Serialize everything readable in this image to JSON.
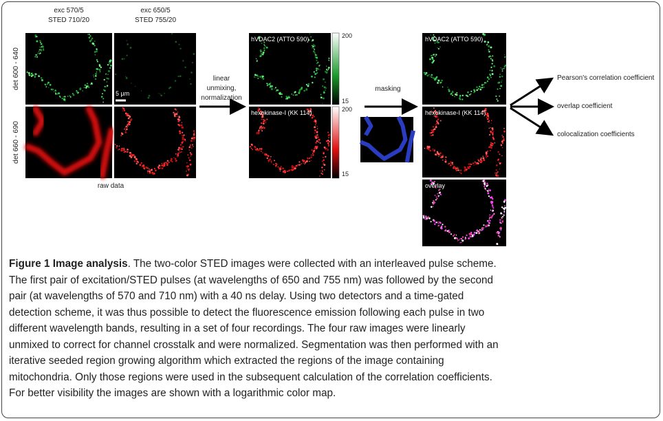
{
  "raw": {
    "columns": [
      [
        "exc 570/5",
        "STED 710/20"
      ],
      [
        "exc 650/5",
        "STED 755/20"
      ]
    ],
    "rows": [
      "det 600 - 640",
      "det 660 - 690"
    ],
    "scale_bar": "5 µm",
    "label": "raw data"
  },
  "step1": {
    "lines": [
      "linear",
      "unmixing,",
      "normalization"
    ]
  },
  "unmixed": {
    "channels": [
      {
        "name": "hVDAC2 (ATTO 590)",
        "max": 200,
        "min": 15
      },
      {
        "name": "hexokinase-I (KK 114)",
        "max": 200,
        "min": 15
      }
    ]
  },
  "step2": {
    "label": "masking"
  },
  "masked": {
    "channels": [
      "hVDAC2 (ATTO 590)",
      "hexokinase-I (KK 114)",
      "overlay"
    ]
  },
  "outputs": [
    "Pearson's correlation coefficient",
    "overlap coefficient",
    "colocalization coefficients"
  ],
  "caption": {
    "label": "Figure 1 Image analysis",
    "lines": [
      ". The two-color STED images were collected with an interleaved pulse scheme.",
      "The first pair of excitation/STED pulses (at wavelengths of 650 and 755 nm) was followed by the second",
      "pair (at wavelengths of 570 and 710 nm) with a 40 ns delay. Using two detectors and a time-gated",
      "detection scheme, it was thus possible to detect the fluorescence emission following each pulse in two",
      "different wavelength bands, resulting in a set of four recordings. The four raw images were linearly",
      "unmixed to correct for channel crosstalk and were normalized. Segmentation was then performed with an",
      "iterative seeded region growing algorithm which extracted the regions of the image containing",
      "mitochondria. Only those regions were used in the subsequent calculation of the correlation coefficients.",
      "For better visibility the images are shown with a logarithmic color map."
    ]
  }
}
